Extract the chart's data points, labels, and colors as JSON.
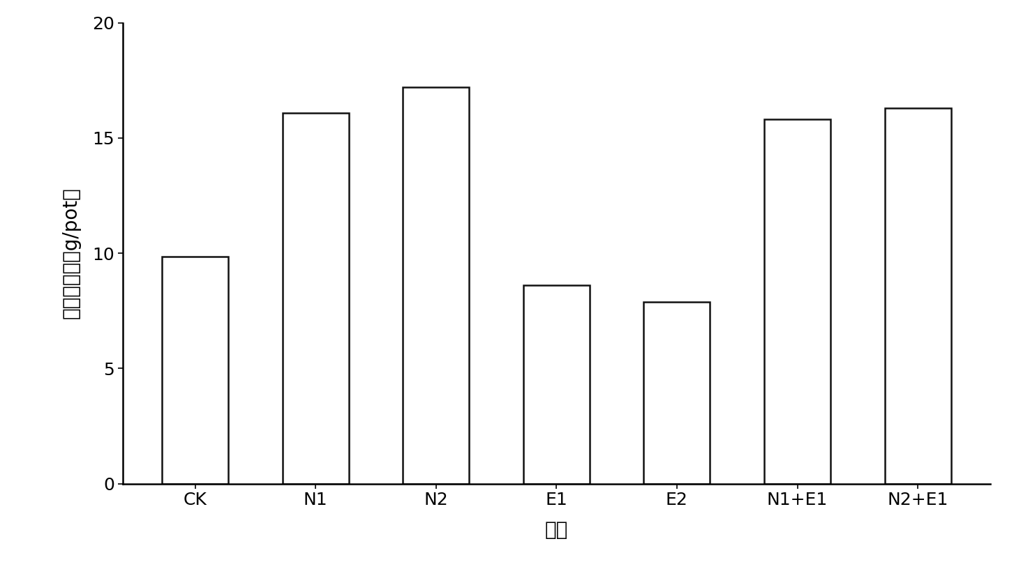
{
  "categories": [
    "CK",
    "N1",
    "N2",
    "E1",
    "E2",
    "N1+E1",
    "N2+E1"
  ],
  "values": [
    9.85,
    16.1,
    17.2,
    8.6,
    7.9,
    15.8,
    16.3
  ],
  "bar_color": "#ffffff",
  "bar_edge_color": "#111111",
  "bar_linewidth": 1.8,
  "ylabel": "地上部干重（g/pot）",
  "xlabel": "处理",
  "ylim": [
    0,
    20
  ],
  "yticks": [
    0,
    5,
    10,
    15,
    20
  ],
  "label_fontsize": 20,
  "tick_fontsize": 18,
  "background_color": "#ffffff",
  "bar_width": 0.55
}
